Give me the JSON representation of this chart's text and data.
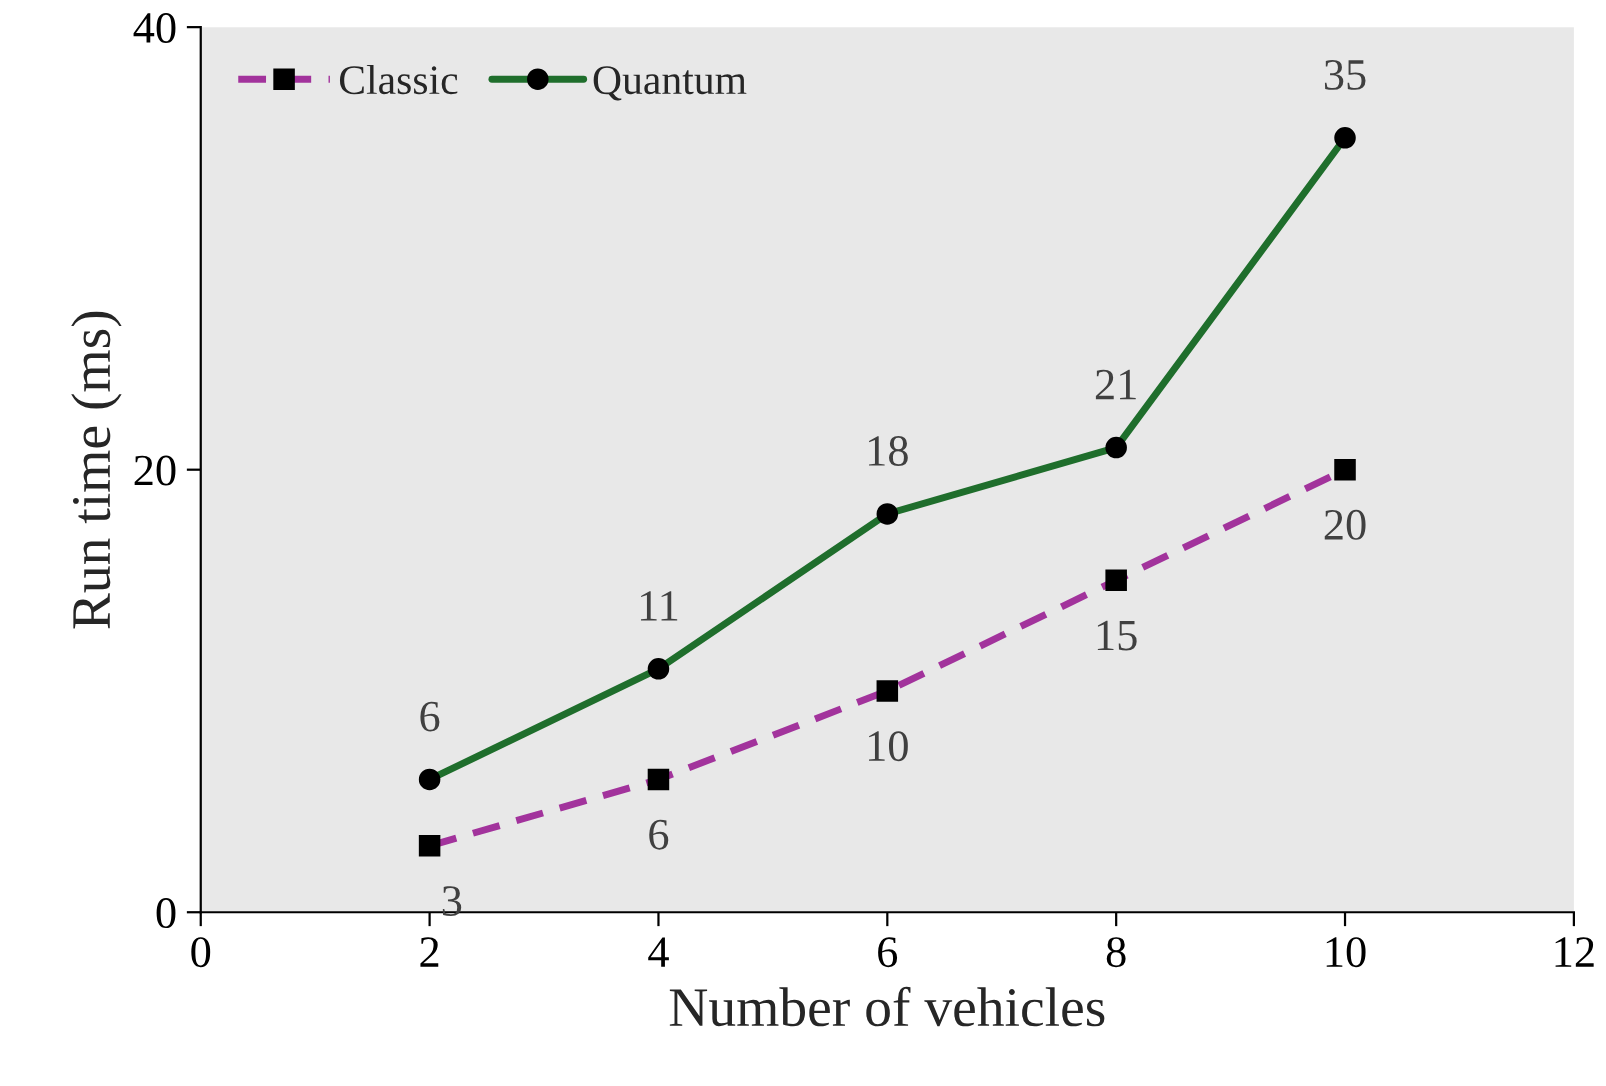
{
  "chart_data": {
    "type": "line",
    "xlabel": "Number of vehicles",
    "ylabel": "Run time (ms)",
    "x": [
      2,
      4,
      6,
      8,
      10
    ],
    "xlim": [
      0,
      12
    ],
    "xticks": [
      0,
      2,
      4,
      6,
      8,
      10,
      12
    ],
    "ylim": [
      0,
      40
    ],
    "yticks": [
      0,
      20,
      40
    ],
    "series": [
      {
        "name": "Classic",
        "color": "#a2339c",
        "values": [
          3,
          6,
          10,
          15,
          20
        ],
        "marker": "square",
        "line_style": "dashed"
      },
      {
        "name": "Quantum",
        "color": "#1f6e2c",
        "values": [
          6,
          11,
          18,
          21,
          35
        ],
        "marker": "circle",
        "line_style": "solid"
      }
    ],
    "data_labels": true,
    "legend": "top left",
    "grid": false
  }
}
